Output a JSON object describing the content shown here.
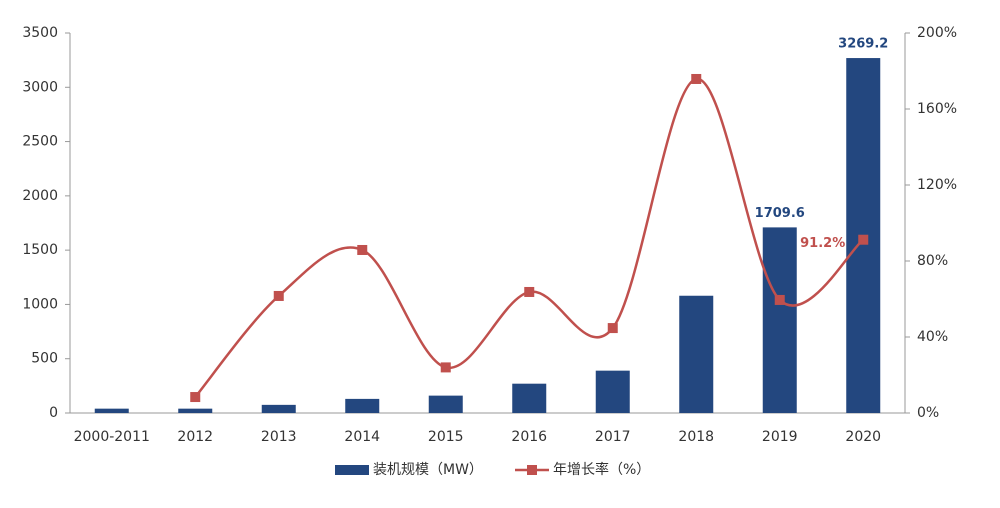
{
  "chart_data": {
    "type": "bar-line",
    "categories": [
      "2000-2011",
      "2012",
      "2013",
      "2014",
      "2015",
      "2016",
      "2017",
      "2018",
      "2019",
      "2020"
    ],
    "series": [
      {
        "name": "装机规模（MW）",
        "type": "bar",
        "color": "#23477f",
        "values": [
          40,
          40,
          75,
          130,
          160,
          270,
          390,
          1080,
          1709.6,
          3269.2
        ],
        "value_labels": [
          null,
          null,
          null,
          null,
          null,
          null,
          null,
          null,
          "1709.6",
          "3269.2"
        ]
      },
      {
        "name": "年增长率（%）",
        "type": "line",
        "axis": "y2",
        "color": "#c0504d",
        "values": [
          null,
          8.4,
          61.6,
          85.8,
          24,
          63.7,
          44.7,
          175.8,
          59.5,
          91.2
        ],
        "value_labels": [
          null,
          null,
          null,
          null,
          null,
          null,
          null,
          null,
          null,
          "91.2%"
        ]
      }
    ],
    "ylim": [
      0,
      3500
    ],
    "yticks": [
      0,
      500,
      1000,
      1500,
      2000,
      2500,
      3000,
      3500
    ],
    "y2lim": [
      0,
      200
    ],
    "y2ticks": [
      {
        "value": 0,
        "label": "0%"
      },
      {
        "value": 40,
        "label": "40%"
      },
      {
        "value": 80,
        "label": "80%"
      },
      {
        "value": 120,
        "label": "120%"
      },
      {
        "value": 160,
        "label": "160%"
      },
      {
        "value": 200,
        "label": "200%"
      }
    ],
    "legend": "bottom"
  }
}
